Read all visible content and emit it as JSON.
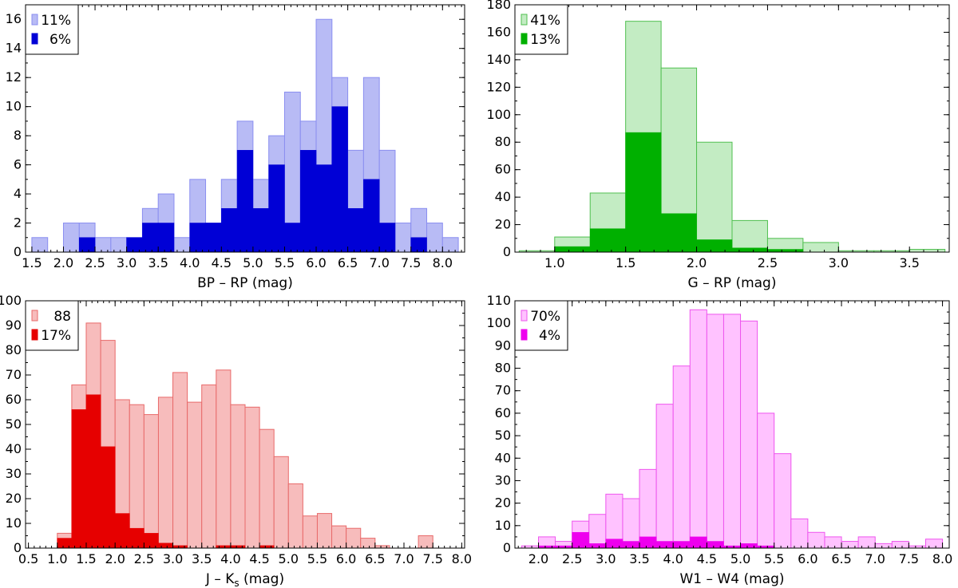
{
  "chart_data": [
    {
      "id": "bp_rp",
      "type": "bar",
      "xlabel": "BP – RP (mag)",
      "ylabel": "",
      "xlim": [
        1.4,
        8.35
      ],
      "ylim": [
        0,
        17
      ],
      "bin_width": 0.25,
      "xticks": [
        "1.5",
        "2.0",
        "2.5",
        "3.0",
        "3.5",
        "4.0",
        "4.5",
        "5.0",
        "5.5",
        "6.0",
        "6.5",
        "7.0",
        "7.5",
        "8.0"
      ],
      "yticks": [
        "0",
        "2",
        "4",
        "6",
        "8",
        "10",
        "12",
        "14",
        "16"
      ],
      "light_color": "#b8bbf5",
      "light_edge": "#8a8ef0",
      "dark_color": "#0000d6",
      "legend": [
        {
          "label": "11%",
          "swatch": "light"
        },
        {
          "label": "6%",
          "swatch": "dark"
        }
      ],
      "series": [
        {
          "name": "all",
          "x0": [
            1.5,
            2.0,
            2.25,
            2.5,
            2.75,
            3.0,
            3.25,
            3.5,
            3.75,
            4.0,
            4.25,
            4.5,
            4.75,
            5.0,
            5.25,
            5.5,
            5.75,
            6.0,
            6.25,
            6.5,
            6.75,
            7.0,
            7.25,
            7.5,
            7.75,
            8.0
          ],
          "values": [
            1,
            2,
            2,
            1,
            1,
            1,
            3,
            4,
            1,
            5,
            2,
            5,
            9,
            5,
            8,
            11,
            9,
            16,
            12,
            7,
            12,
            7,
            2,
            3,
            2,
            1
          ]
        },
        {
          "name": "subset",
          "x0": [
            2.25,
            3.0,
            3.25,
            3.5,
            4.0,
            4.25,
            4.5,
            4.75,
            5.0,
            5.25,
            5.5,
            5.75,
            6.0,
            6.25,
            6.5,
            6.75,
            7.0,
            7.5
          ],
          "values": [
            1,
            1,
            2,
            2,
            2,
            2,
            3,
            7,
            3,
            6,
            2,
            7,
            6,
            10,
            3,
            5,
            2,
            1
          ]
        }
      ]
    },
    {
      "id": "g_rp",
      "type": "bar",
      "xlabel": "G – RP (mag)",
      "ylabel": "",
      "xlim": [
        0.72,
        3.78
      ],
      "ylim": [
        0,
        180
      ],
      "bin_width": 0.25,
      "xticks": [
        "1.0",
        "1.5",
        "2.0",
        "2.5",
        "3.0",
        "3.5"
      ],
      "yticks": [
        "0",
        "20",
        "40",
        "60",
        "80",
        "100",
        "120",
        "140",
        "160",
        "180"
      ],
      "light_color": "#c3ecc3",
      "light_edge": "#4fbf4f",
      "dark_color": "#00b000",
      "legend": [
        {
          "label": "41%",
          "swatch": "light"
        },
        {
          "label": "13%",
          "swatch": "dark"
        }
      ],
      "series": [
        {
          "name": "all",
          "x0": [
            0.75,
            1.0,
            1.25,
            1.5,
            1.75,
            2.0,
            2.25,
            2.5,
            2.75,
            3.0,
            3.25,
            3.5
          ],
          "values": [
            1,
            11,
            43,
            168,
            134,
            80,
            23,
            10,
            7,
            1,
            1,
            2
          ]
        },
        {
          "name": "subset",
          "x0": [
            1.0,
            1.25,
            1.5,
            1.75,
            2.0,
            2.25,
            2.5
          ],
          "values": [
            4,
            17,
            87,
            28,
            9,
            3,
            2
          ]
        }
      ]
    },
    {
      "id": "j_ks",
      "type": "bar",
      "xlabel": "J – K",
      "xlabel_sub": "s",
      "xlabel_tail": " (mag)",
      "ylabel": "",
      "xlim": [
        0.45,
        8.05
      ],
      "ylim": [
        0,
        100
      ],
      "bin_width": 0.25,
      "xticks": [
        "0.5",
        "1.0",
        "1.5",
        "2.0",
        "2.5",
        "3.0",
        "3.5",
        "4.0",
        "4.5",
        "5.0",
        "5.5",
        "6.0",
        "6.5",
        "7.0",
        "7.5",
        "8.0"
      ],
      "yticks": [
        "0",
        "10",
        "20",
        "30",
        "40",
        "50",
        "60",
        "70",
        "80",
        "90",
        "100"
      ],
      "light_color": "#f7bcbc",
      "light_edge": "#e86a6a",
      "dark_color": "#e60000",
      "legend": [
        {
          "label": "88",
          "swatch": "light"
        },
        {
          "label": "17%",
          "swatch": "dark"
        }
      ],
      "series": [
        {
          "name": "all",
          "x0": [
            1.0,
            1.25,
            1.5,
            1.75,
            2.0,
            2.25,
            2.5,
            2.75,
            3.0,
            3.25,
            3.5,
            3.75,
            4.0,
            4.25,
            4.5,
            4.75,
            5.0,
            5.25,
            5.5,
            5.75,
            6.0,
            6.25,
            6.5,
            7.25
          ],
          "values": [
            6,
            66,
            91,
            84,
            60,
            58,
            54,
            61,
            71,
            59,
            66,
            72,
            58,
            57,
            48,
            37,
            26,
            13,
            14,
            9,
            8,
            4,
            1,
            5
          ]
        },
        {
          "name": "subset",
          "x0": [
            1.0,
            1.25,
            1.5,
            1.75,
            2.0,
            2.25,
            2.5,
            2.75,
            3.0,
            3.75,
            4.0,
            4.5
          ],
          "values": [
            4,
            56,
            62,
            41,
            14,
            8,
            6,
            2,
            1,
            1,
            1,
            1
          ]
        }
      ]
    },
    {
      "id": "w1_w4",
      "type": "bar",
      "xlabel": "W1 – W4 (mag)",
      "ylabel": "",
      "xlim": [
        1.65,
        8.1
      ],
      "ylim": [
        0,
        110
      ],
      "bin_width": 0.25,
      "xticks": [
        "2.0",
        "2.5",
        "3.0",
        "3.5",
        "4.0",
        "4.5",
        "5.0",
        "5.5",
        "6.0",
        "6.5",
        "7.0",
        "7.5",
        "8.0"
      ],
      "yticks": [
        "0",
        "10",
        "20",
        "30",
        "40",
        "50",
        "60",
        "70",
        "80",
        "90",
        "100",
        "110"
      ],
      "light_color": "#ffc2ff",
      "light_edge": "#ee55ee",
      "dark_color": "#ee00ee",
      "legend": [
        {
          "label": "70%",
          "swatch": "light"
        },
        {
          "label": "4%",
          "swatch": "dark"
        }
      ],
      "series": [
        {
          "name": "all",
          "x0": [
            1.75,
            2.0,
            2.25,
            2.5,
            2.75,
            3.0,
            3.25,
            3.5,
            3.75,
            4.0,
            4.25,
            4.5,
            4.75,
            5.0,
            5.25,
            5.5,
            5.75,
            6.0,
            6.25,
            6.5,
            6.75,
            7.0,
            7.25,
            7.5,
            7.75
          ],
          "values": [
            1,
            5,
            3,
            12,
            15,
            24,
            22,
            35,
            64,
            81,
            106,
            104,
            104,
            101,
            60,
            42,
            13,
            7,
            5,
            3,
            5,
            2,
            3,
            1,
            4
          ]
        },
        {
          "name": "subset",
          "x0": [
            2.0,
            2.25,
            2.5,
            2.75,
            3.0,
            3.25,
            3.5,
            3.75,
            4.0,
            4.25,
            4.5,
            4.75,
            5.0,
            5.25
          ],
          "values": [
            1,
            1,
            7,
            2,
            4,
            3,
            5,
            3,
            3,
            5,
            3,
            1,
            2,
            1
          ]
        }
      ]
    }
  ]
}
